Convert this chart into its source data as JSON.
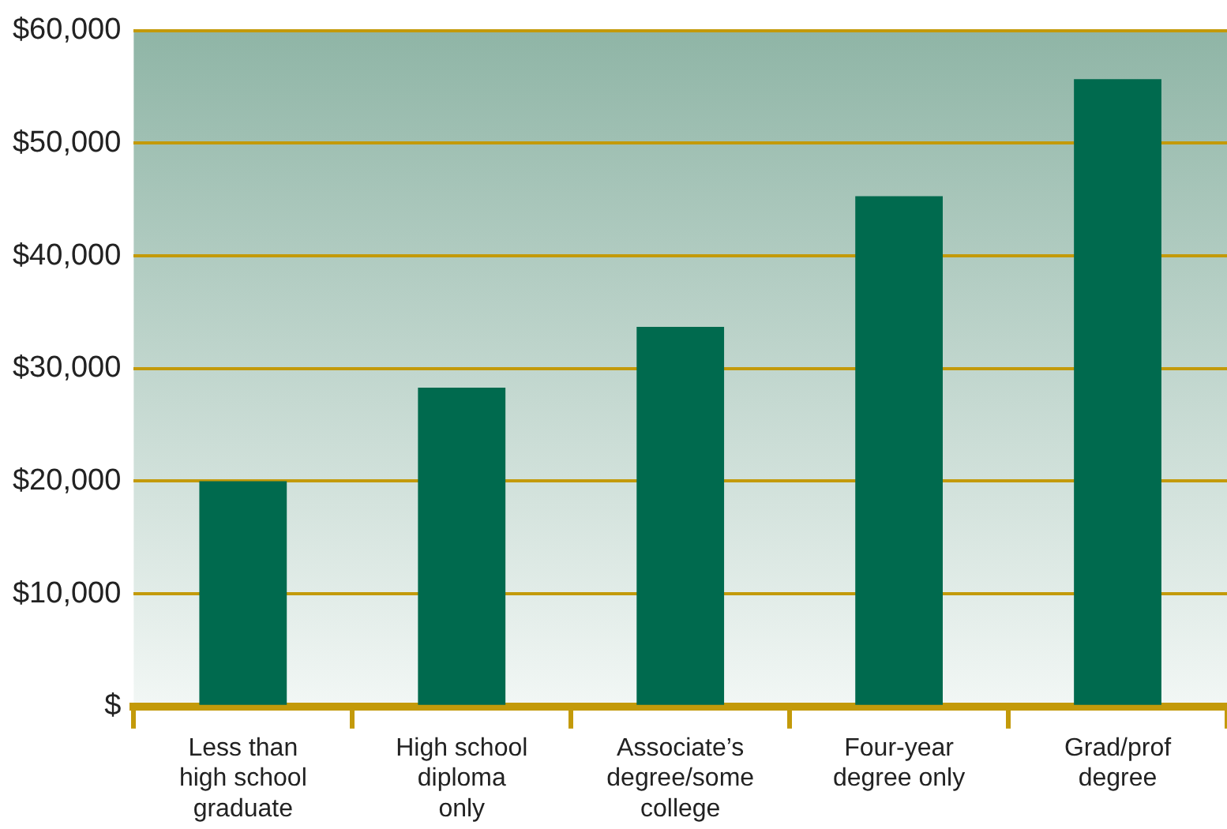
{
  "chart_data": {
    "type": "bar",
    "categories": [
      "Less than\nhigh school\ngraduate",
      "High school\ndiploma\nonly",
      "Associate’s\ndegree/some\ncollege",
      "Four-year\ndegree only",
      "Grad/prof\ndegree"
    ],
    "values": [
      20000,
      28300,
      33700,
      45300,
      55700
    ],
    "color": "#006a4e",
    "ylim": [
      0,
      60000
    ],
    "yticks": [
      {
        "value": 0,
        "label": "$"
      },
      {
        "value": 10000,
        "label": "$10,000"
      },
      {
        "value": 20000,
        "label": "$20,000"
      },
      {
        "value": 30000,
        "label": "$30,000"
      },
      {
        "value": 40000,
        "label": "$40,000"
      },
      {
        "value": 50000,
        "label": "$50,000"
      },
      {
        "value": 60000,
        "label": "$60,000"
      }
    ],
    "grid": "y"
  }
}
